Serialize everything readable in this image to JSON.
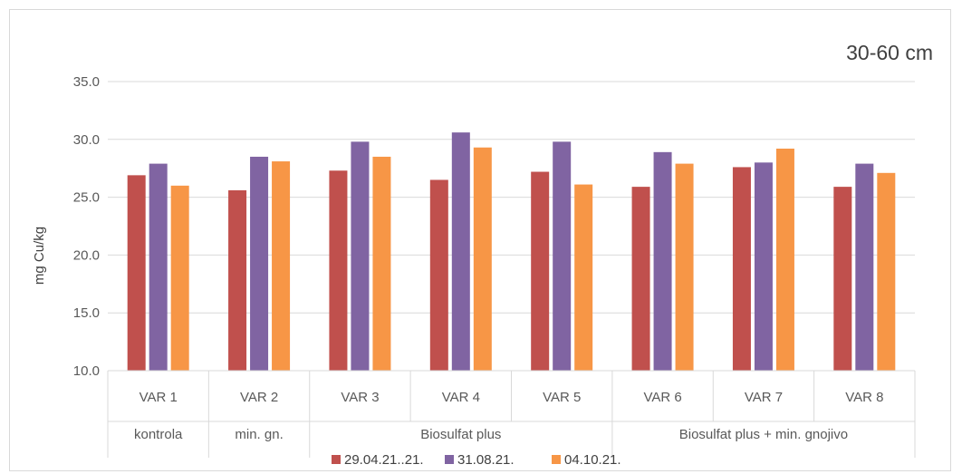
{
  "chart_data": {
    "type": "bar",
    "title": "30-60 cm",
    "ylabel": "mg Cu/kg",
    "xlabel": "",
    "ylim": [
      10.0,
      35.0
    ],
    "yticks": [
      "10.0",
      "15.0",
      "20.0",
      "25.0",
      "30.0",
      "35.0"
    ],
    "grid": true,
    "legend_position": "bottom",
    "categories": [
      "VAR 1",
      "VAR 2",
      "VAR 3",
      "VAR 4",
      "VAR 5",
      "VAR 6",
      "VAR 7",
      "VAR 8"
    ],
    "groups": [
      {
        "label": "kontrola",
        "span": 1
      },
      {
        "label": "min. gn.",
        "span": 1
      },
      {
        "label": "Biosulfat plus",
        "span": 3
      },
      {
        "label": "Biosulfat plus + min. gnojivo",
        "span": 3
      }
    ],
    "series": [
      {
        "name": "29.04.21..21.",
        "color": "#c0504d",
        "values": [
          26.9,
          25.6,
          27.3,
          26.5,
          27.2,
          25.9,
          27.6,
          25.9
        ]
      },
      {
        "name": "31.08.21.",
        "color": "#8064a2",
        "values": [
          27.9,
          28.5,
          29.8,
          30.6,
          29.8,
          28.9,
          28.0,
          27.9
        ]
      },
      {
        "name": "04.10.21.",
        "color": "#f79646",
        "values": [
          26.0,
          28.1,
          28.5,
          29.3,
          26.1,
          27.9,
          29.2,
          27.1
        ]
      }
    ]
  }
}
